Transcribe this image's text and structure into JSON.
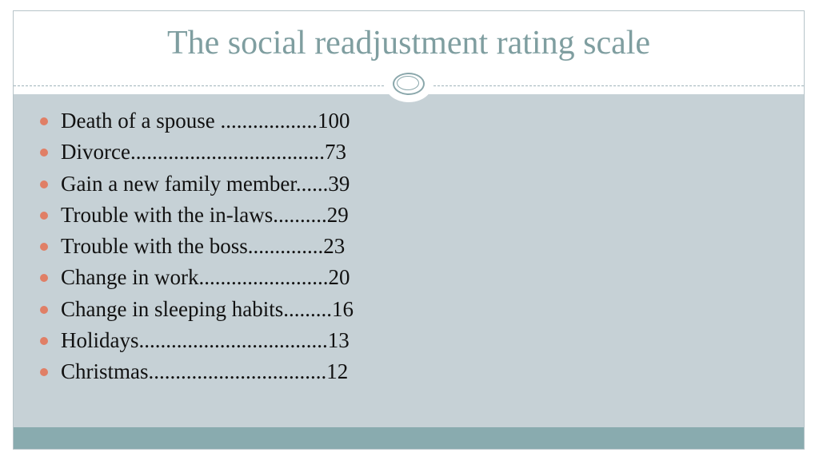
{
  "slide": {
    "title": "The social readjustment rating scale",
    "bullet_color": "#e07f66",
    "title_color": "#7f9ea0",
    "content_background": "#c6d1d6",
    "footer_color": "#89abaf",
    "items": [
      {
        "event": "Death of a spouse ..................",
        "value": "100"
      },
      {
        "event": "Divorce....................................",
        "value": "73"
      },
      {
        "event": "Gain a new family member......",
        "value": "39"
      },
      {
        "event": "Trouble with the in-laws..........",
        "value": "29"
      },
      {
        "event": "Trouble with the boss..............",
        "value": "23"
      },
      {
        "event": "Change in work........................",
        "value": "20"
      },
      {
        "event": "Change in sleeping habits.........",
        "value": "16"
      },
      {
        "event": "Holidays...................................",
        "value": "13"
      },
      {
        "event": "Christmas.................................",
        "value": "12"
      }
    ]
  }
}
